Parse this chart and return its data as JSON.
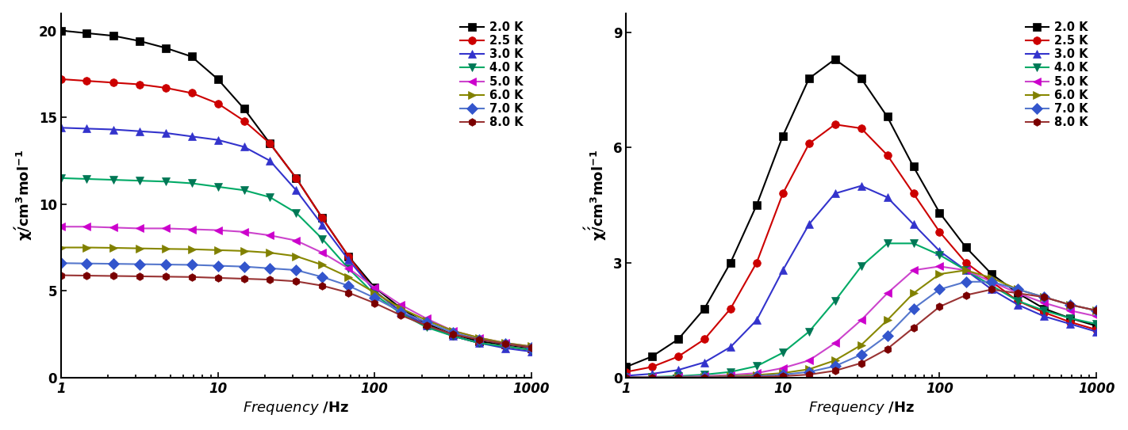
{
  "frequencies": [
    1,
    1.46,
    2.15,
    3.16,
    4.64,
    6.81,
    10,
    14.7,
    21.5,
    31.6,
    46.4,
    68.1,
    100,
    147,
    215,
    316,
    464,
    681,
    1000
  ],
  "chi_prime": {
    "2.0": [
      20.0,
      19.85,
      19.7,
      19.4,
      19.0,
      18.5,
      17.2,
      15.5,
      13.5,
      11.5,
      9.2,
      7.0,
      5.2,
      4.0,
      3.1,
      2.5,
      2.1,
      1.9,
      1.7
    ],
    "2.5": [
      17.2,
      17.1,
      17.0,
      16.9,
      16.7,
      16.4,
      15.8,
      14.8,
      13.5,
      11.5,
      9.2,
      7.0,
      5.0,
      3.8,
      3.0,
      2.4,
      2.0,
      1.8,
      1.6
    ],
    "3.0": [
      14.4,
      14.35,
      14.3,
      14.2,
      14.1,
      13.9,
      13.7,
      13.3,
      12.5,
      10.8,
      8.8,
      6.8,
      5.0,
      3.8,
      3.0,
      2.4,
      2.0,
      1.7,
      1.5
    ],
    "4.0": [
      11.5,
      11.45,
      11.4,
      11.35,
      11.3,
      11.2,
      11.0,
      10.8,
      10.4,
      9.5,
      8.0,
      6.3,
      4.8,
      3.7,
      2.9,
      2.4,
      2.0,
      1.8,
      1.6
    ],
    "5.0": [
      8.7,
      8.7,
      8.65,
      8.6,
      8.6,
      8.55,
      8.5,
      8.4,
      8.2,
      7.9,
      7.2,
      6.3,
      5.2,
      4.2,
      3.4,
      2.7,
      2.3,
      2.0,
      1.8
    ],
    "6.0": [
      7.5,
      7.5,
      7.48,
      7.45,
      7.42,
      7.4,
      7.35,
      7.3,
      7.2,
      7.0,
      6.5,
      5.8,
      4.9,
      4.0,
      3.3,
      2.7,
      2.3,
      2.0,
      1.8
    ],
    "7.0": [
      6.6,
      6.58,
      6.56,
      6.54,
      6.52,
      6.5,
      6.45,
      6.4,
      6.3,
      6.2,
      5.8,
      5.3,
      4.6,
      3.8,
      3.2,
      2.6,
      2.2,
      1.95,
      1.75
    ],
    "8.0": [
      5.9,
      5.88,
      5.86,
      5.84,
      5.82,
      5.8,
      5.75,
      5.7,
      5.65,
      5.55,
      5.3,
      4.9,
      4.3,
      3.6,
      3.0,
      2.5,
      2.2,
      1.95,
      1.75
    ]
  },
  "chi_double_prime": {
    "2.0": [
      0.28,
      0.55,
      1.0,
      1.8,
      3.0,
      4.5,
      6.3,
      7.8,
      8.3,
      7.8,
      6.8,
      5.5,
      4.3,
      3.4,
      2.7,
      2.2,
      1.8,
      1.55,
      1.35
    ],
    "2.5": [
      0.15,
      0.28,
      0.55,
      1.0,
      1.8,
      3.0,
      4.8,
      6.1,
      6.6,
      6.5,
      5.8,
      4.8,
      3.8,
      3.0,
      2.5,
      2.0,
      1.7,
      1.45,
      1.25
    ],
    "3.0": [
      0.05,
      0.1,
      0.2,
      0.4,
      0.8,
      1.5,
      2.8,
      4.0,
      4.8,
      5.0,
      4.7,
      4.0,
      3.3,
      2.8,
      2.3,
      1.9,
      1.6,
      1.4,
      1.2
    ],
    "4.0": [
      0.01,
      0.02,
      0.04,
      0.08,
      0.15,
      0.3,
      0.65,
      1.2,
      2.0,
      2.9,
      3.5,
      3.5,
      3.2,
      2.8,
      2.4,
      2.0,
      1.75,
      1.55,
      1.4
    ],
    "5.0": [
      0.01,
      0.015,
      0.02,
      0.04,
      0.07,
      0.12,
      0.25,
      0.45,
      0.9,
      1.5,
      2.2,
      2.8,
      2.9,
      2.8,
      2.5,
      2.2,
      1.95,
      1.75,
      1.6
    ],
    "6.0": [
      0.005,
      0.008,
      0.012,
      0.02,
      0.04,
      0.07,
      0.12,
      0.22,
      0.45,
      0.85,
      1.5,
      2.2,
      2.7,
      2.8,
      2.6,
      2.3,
      2.1,
      1.9,
      1.75
    ],
    "7.0": [
      0.003,
      0.005,
      0.008,
      0.012,
      0.02,
      0.04,
      0.08,
      0.15,
      0.3,
      0.6,
      1.1,
      1.8,
      2.3,
      2.5,
      2.5,
      2.3,
      2.1,
      1.9,
      1.75
    ],
    "8.0": [
      0.002,
      0.003,
      0.005,
      0.008,
      0.012,
      0.02,
      0.04,
      0.08,
      0.18,
      0.38,
      0.75,
      1.3,
      1.85,
      2.15,
      2.3,
      2.2,
      2.1,
      1.9,
      1.75
    ]
  },
  "temperatures": [
    "2.0",
    "2.5",
    "3.0",
    "4.0",
    "5.0",
    "6.0",
    "7.0",
    "8.0"
  ],
  "colors": [
    "#000000",
    "#cc0000",
    "#3333cc",
    "#007755",
    "#cc00cc",
    "#808000",
    "#3355cc",
    "#7a0000"
  ],
  "line_colors": [
    "#000000",
    "#cc0000",
    "#3333cc",
    "#00aa66",
    "#cc44cc",
    "#888800",
    "#5577cc",
    "#993333"
  ],
  "markers": [
    "s",
    "o",
    "^",
    "v",
    "<",
    ">",
    "D",
    "h"
  ],
  "labels": [
    "2.0 K",
    "2.5 K",
    "3.0 K",
    "4.0 K",
    "5.0 K",
    "6.0 K",
    "7.0 K",
    "8.0 K"
  ],
  "ylabel_prime": "χ’ / cm³mol⁻¹",
  "ylabel_dpp": "χ’’ / cm³mol⁻¹",
  "xlabel": "Frequency / Hz",
  "ylim_prime": [
    0,
    21
  ],
  "ylim_dpp": [
    0,
    9.5
  ],
  "xlim": [
    1,
    1000
  ],
  "yticks_prime": [
    0,
    5,
    10,
    15,
    20
  ],
  "yticks_dpp": [
    0,
    3,
    6,
    9
  ]
}
